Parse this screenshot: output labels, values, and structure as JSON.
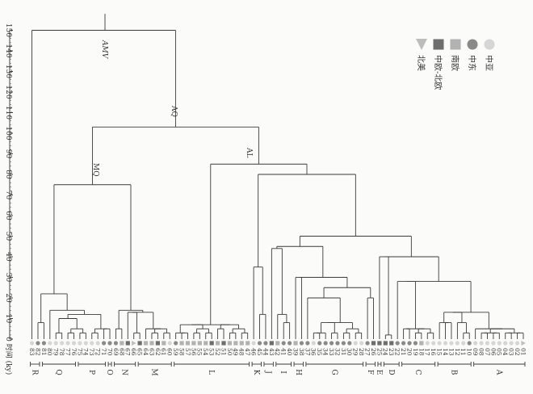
{
  "axis": {
    "title": "时间 (ky)",
    "ticks": [
      "0",
      "10",
      "20",
      "30",
      "40",
      "50",
      "60",
      "70",
      "80",
      "90",
      "100",
      "110",
      "120",
      "130",
      "140",
      "150"
    ]
  },
  "legend": [
    {
      "label": "中亚",
      "shape": "circle",
      "color": "#d6d6d6"
    },
    {
      "label": "中东",
      "shape": "circle",
      "color": "#8a8a8a"
    },
    {
      "label": "南欧",
      "shape": "square",
      "color": "#b2b2b2"
    },
    {
      "label": "中欧-北欧",
      "shape": "square",
      "color": "#6e6e6e"
    },
    {
      "label": "北美",
      "shape": "triangle",
      "color": "#bdbdbd"
    }
  ],
  "node_labels": {
    "root": "AMV",
    "n1": "AQ",
    "n2": "MQ",
    "n3": "AL"
  },
  "leaves": [
    {
      "id": "01",
      "shape": "triangle",
      "color": "#bdbdbd"
    },
    {
      "id": "02",
      "shape": "circle",
      "color": "#d6d6d6"
    },
    {
      "id": "03",
      "shape": "circle",
      "color": "#d6d6d6"
    },
    {
      "id": "04",
      "shape": "circle",
      "color": "#d6d6d6"
    },
    {
      "id": "05",
      "shape": "circle",
      "color": "#d6d6d6"
    },
    {
      "id": "06",
      "shape": "circle",
      "color": "#d6d6d6"
    },
    {
      "id": "07",
      "shape": "circle",
      "color": "#d6d6d6"
    },
    {
      "id": "08",
      "shape": "circle",
      "color": "#d6d6d6"
    },
    {
      "id": "09",
      "shape": "circle",
      "color": "#d6d6d6"
    },
    {
      "id": "10",
      "shape": "circle",
      "color": "#8a8a8a"
    },
    {
      "id": "11",
      "shape": "circle",
      "color": "#d6d6d6"
    },
    {
      "id": "12",
      "shape": "circle",
      "color": "#d6d6d6"
    },
    {
      "id": "13",
      "shape": "circle",
      "color": "#d6d6d6"
    },
    {
      "id": "14",
      "shape": "circle",
      "color": "#d6d6d6"
    },
    {
      "id": "15",
      "shape": "circle",
      "color": "#d6d6d6"
    },
    {
      "id": "16",
      "shape": "circle",
      "color": "#d6d6d6"
    },
    {
      "id": "17",
      "shape": "circle",
      "color": "#d6d6d6"
    },
    {
      "id": "18",
      "shape": "square",
      "color": "#b2b2b2"
    },
    {
      "id": "19",
      "shape": "circle",
      "color": "#8a8a8a"
    },
    {
      "id": "20",
      "shape": "circle",
      "color": "#8a8a8a"
    },
    {
      "id": "21",
      "shape": "circle",
      "color": "#8a8a8a"
    },
    {
      "id": "22",
      "shape": "circle",
      "color": "#8a8a8a"
    },
    {
      "id": "23",
      "shape": "square",
      "color": "#6e6e6e"
    },
    {
      "id": "24",
      "shape": "square",
      "color": "#6e6e6e"
    },
    {
      "id": "25",
      "shape": "square",
      "color": "#6e6e6e"
    },
    {
      "id": "26",
      "shape": "square",
      "color": "#6e6e6e"
    },
    {
      "id": "27",
      "shape": "circle",
      "color": "#8a8a8a"
    },
    {
      "id": "28",
      "shape": "circle",
      "color": "#d6d6d6"
    },
    {
      "id": "29",
      "shape": "circle",
      "color": "#d6d6d6"
    },
    {
      "id": "30",
      "shape": "circle",
      "color": "#8a8a8a"
    },
    {
      "id": "31",
      "shape": "circle",
      "color": "#8a8a8a"
    },
    {
      "id": "32",
      "shape": "circle",
      "color": "#8a8a8a"
    },
    {
      "id": "33",
      "shape": "circle",
      "color": "#8a8a8a"
    },
    {
      "id": "34",
      "shape": "circle",
      "color": "#8a8a8a"
    },
    {
      "id": "35",
      "shape": "circle",
      "color": "#8a8a8a"
    },
    {
      "id": "36",
      "shape": "circle",
      "color": "#d6d6d6"
    },
    {
      "id": "37",
      "shape": "circle",
      "color": "#8a8a8a"
    },
    {
      "id": "38",
      "shape": "circle",
      "color": "#8a8a8a"
    },
    {
      "id": "39",
      "shape": "square",
      "color": "#b2b2b2"
    },
    {
      "id": "40",
      "shape": "circle",
      "color": "#8a8a8a"
    },
    {
      "id": "41",
      "shape": "circle",
      "color": "#8a8a8a"
    },
    {
      "id": "42",
      "shape": "square",
      "color": "#b2b2b2"
    },
    {
      "id": "43",
      "shape": "square",
      "color": "#6e6e6e"
    },
    {
      "id": "44",
      "shape": "circle",
      "color": "#8a8a8a"
    },
    {
      "id": "45",
      "shape": "circle",
      "color": "#8a8a8a"
    },
    {
      "id": "46",
      "shape": "circle",
      "color": "#d6d6d6"
    },
    {
      "id": "47",
      "shape": "square",
      "color": "#b2b2b2"
    },
    {
      "id": "48",
      "shape": "square",
      "color": "#b2b2b2"
    },
    {
      "id": "49",
      "shape": "square",
      "color": "#b2b2b2"
    },
    {
      "id": "50",
      "shape": "square",
      "color": "#b2b2b2"
    },
    {
      "id": "51",
      "shape": "square",
      "color": "#6e6e6e"
    },
    {
      "id": "52",
      "shape": "square",
      "color": "#b2b2b2"
    },
    {
      "id": "53",
      "shape": "square",
      "color": "#6e6e6e"
    },
    {
      "id": "54",
      "shape": "square",
      "color": "#b2b2b2"
    },
    {
      "id": "55",
      "shape": "square",
      "color": "#b2b2b2"
    },
    {
      "id": "56",
      "shape": "square",
      "color": "#b2b2b2"
    },
    {
      "id": "57",
      "shape": "square",
      "color": "#b2b2b2"
    },
    {
      "id": "58",
      "shape": "square",
      "color": "#b2b2b2"
    },
    {
      "id": "59",
      "shape": "circle",
      "color": "#8a8a8a"
    },
    {
      "id": "60",
      "shape": "circle",
      "color": "#d6d6d6"
    },
    {
      "id": "61",
      "shape": "square",
      "color": "#b2b2b2"
    },
    {
      "id": "62",
      "shape": "square",
      "color": "#6e6e6e"
    },
    {
      "id": "63",
      "shape": "square",
      "color": "#b2b2b2"
    },
    {
      "id": "64",
      "shape": "square",
      "color": "#b2b2b2"
    },
    {
      "id": "65",
      "shape": "square",
      "color": "#6e6e6e"
    },
    {
      "id": "66",
      "shape": "triangle",
      "color": "#bdbdbd"
    },
    {
      "id": "67",
      "shape": "square",
      "color": "#6e6e6e"
    },
    {
      "id": "68",
      "shape": "square",
      "color": "#b2b2b2"
    },
    {
      "id": "69",
      "shape": "circle",
      "color": "#8a8a8a"
    },
    {
      "id": "70",
      "shape": "circle",
      "color": "#8a8a8a"
    },
    {
      "id": "71",
      "shape": "circle",
      "color": "#8a8a8a"
    },
    {
      "id": "72",
      "shape": "circle",
      "color": "#d6d6d6"
    },
    {
      "id": "73",
      "shape": "circle",
      "color": "#d6d6d6"
    },
    {
      "id": "74",
      "shape": "circle",
      "color": "#d6d6d6"
    },
    {
      "id": "75",
      "shape": "circle",
      "color": "#d6d6d6"
    },
    {
      "id": "76",
      "shape": "circle",
      "color": "#d6d6d6"
    },
    {
      "id": "77",
      "shape": "circle",
      "color": "#d6d6d6"
    },
    {
      "id": "78",
      "shape": "circle",
      "color": "#d6d6d6"
    },
    {
      "id": "79",
      "shape": "circle",
      "color": "#d6d6d6"
    },
    {
      "id": "80",
      "shape": "circle",
      "color": "#d6d6d6"
    },
    {
      "id": "81",
      "shape": "circle",
      "color": "#8a8a8a"
    },
    {
      "id": "82",
      "shape": "circle",
      "color": "#8a8a8a"
    },
    {
      "id": "83",
      "shape": "circle",
      "color": "#d6d6d6"
    }
  ],
  "clusters": [
    {
      "label": "A",
      "from": "01",
      "to": "09"
    },
    {
      "label": "B",
      "from": "10",
      "to": "15"
    },
    {
      "label": "C",
      "from": "16",
      "to": "21"
    },
    {
      "label": "D",
      "from": "22",
      "to": "24"
    },
    {
      "label": "E",
      "from": "25",
      "to": "25"
    },
    {
      "label": "F",
      "from": "26",
      "to": "27"
    },
    {
      "label": "G",
      "from": "28",
      "to": "37"
    },
    {
      "label": "H",
      "from": "38",
      "to": "39"
    },
    {
      "label": "I",
      "from": "40",
      "to": "42"
    },
    {
      "label": "J",
      "from": "43",
      "to": "44"
    },
    {
      "label": "K",
      "from": "45",
      "to": "46"
    },
    {
      "label": "L",
      "from": "47",
      "to": "59"
    },
    {
      "label": "M",
      "from": "60",
      "to": "65"
    },
    {
      "label": "N",
      "from": "66",
      "to": "69"
    },
    {
      "label": "O",
      "from": "70",
      "to": "70"
    },
    {
      "label": "P",
      "from": "71",
      "to": "75"
    },
    {
      "label": "Q",
      "from": "76",
      "to": "81"
    },
    {
      "label": "R",
      "from": "82",
      "to": "83"
    }
  ]
}
